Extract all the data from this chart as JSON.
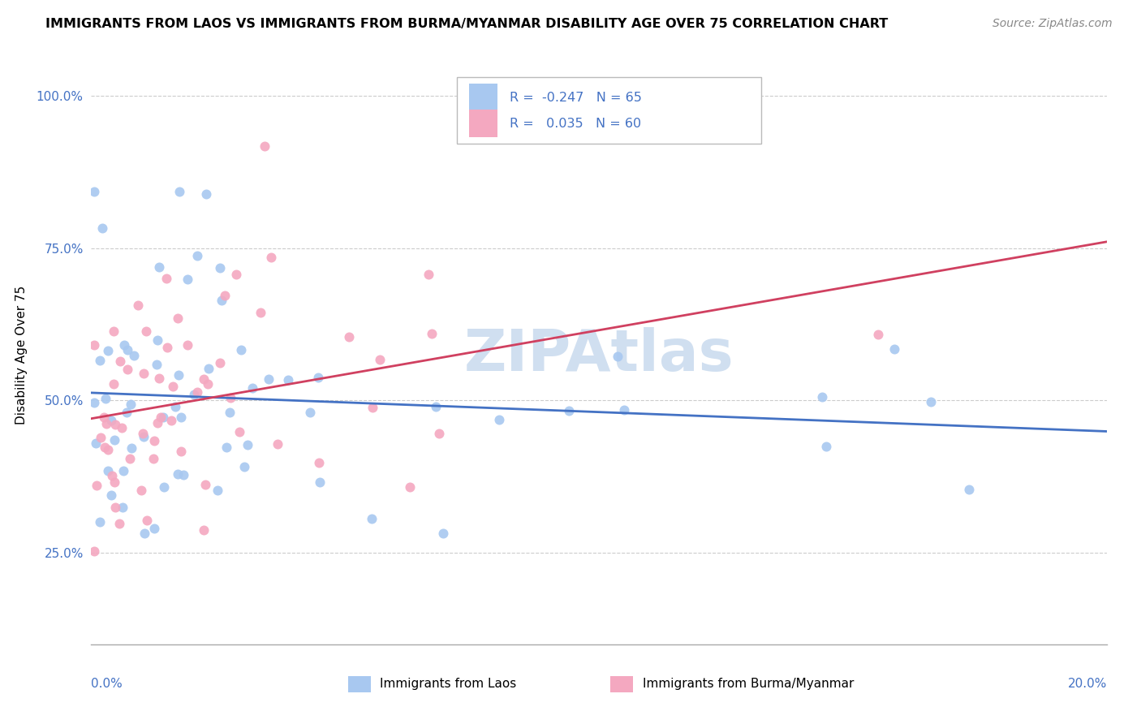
{
  "title": "IMMIGRANTS FROM LAOS VS IMMIGRANTS FROM BURMA/MYANMAR DISABILITY AGE OVER 75 CORRELATION CHART",
  "source": "Source: ZipAtlas.com",
  "ylabel": "Disability Age Over 75",
  "yticks": [
    0.25,
    0.5,
    0.75,
    1.0
  ],
  "ytick_labels": [
    "25.0%",
    "50.0%",
    "75.0%",
    "100.0%"
  ],
  "xlim": [
    0.0,
    20.0
  ],
  "ylim": [
    0.1,
    1.05
  ],
  "blue_color": "#a8c8f0",
  "pink_color": "#f4a8c0",
  "blue_line_color": "#4472c4",
  "pink_line_color": "#d04060",
  "tick_color": "#4472c4",
  "watermark_color": "#d0dff0",
  "legend_text_color": "#4472c4",
  "grid_color": "#cccccc",
  "bottom_legend_label1": "Immigrants from Laos",
  "bottom_legend_label2": "Immigrants from Burma/Myanmar"
}
